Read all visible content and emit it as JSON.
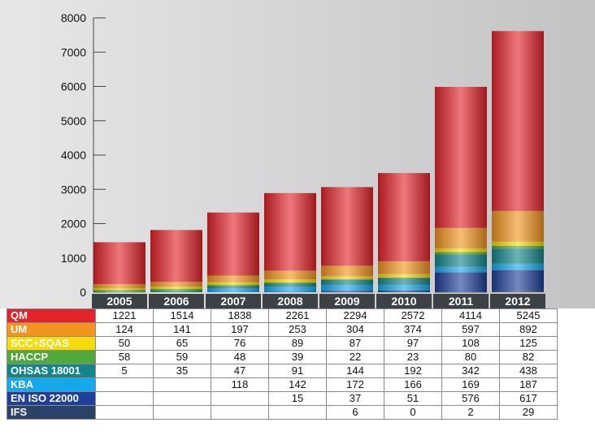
{
  "chart_data": {
    "type": "bar",
    "stacked": true,
    "categories": [
      "2005",
      "2006",
      "2007",
      "2008",
      "2009",
      "2010",
      "2011",
      "2012"
    ],
    "ylim": [
      0,
      8000
    ],
    "yticks": [
      "0",
      "1000",
      "2000",
      "3000",
      "4000",
      "5000",
      "6000",
      "7000",
      "8000"
    ],
    "ytick_values": [
      0,
      1000,
      2000,
      3000,
      4000,
      5000,
      6000,
      7000,
      8000
    ],
    "grid": false,
    "legend": "table",
    "series": [
      {
        "name": "IFS",
        "color": "#2c4168",
        "values": [
          null,
          null,
          null,
          null,
          6,
          0,
          2,
          29
        ]
      },
      {
        "name": "EN ISO 22000",
        "color": "#1e3f9a",
        "values": [
          null,
          null,
          null,
          15,
          37,
          51,
          576,
          617
        ]
      },
      {
        "name": "KBA",
        "color": "#16a8ec",
        "values": [
          null,
          null,
          118,
          142,
          172,
          166,
          169,
          187
        ]
      },
      {
        "name": "OHSAS 18001",
        "color": "#12868c",
        "values": [
          5,
          35,
          47,
          91,
          144,
          192,
          342,
          438
        ]
      },
      {
        "name": "HACCP",
        "color": "#52a83a",
        "values": [
          58,
          59,
          48,
          39,
          22,
          23,
          80,
          82
        ]
      },
      {
        "name": "SCC+SQAS",
        "color": "#f5dc0a",
        "values": [
          50,
          65,
          76,
          89,
          87,
          97,
          108,
          125
        ]
      },
      {
        "name": "UM",
        "color": "#f39420",
        "values": [
          124,
          141,
          197,
          253,
          304,
          374,
          597,
          892
        ]
      },
      {
        "name": "QM",
        "color": "#e3232a",
        "values": [
          1221,
          1514,
          1838,
          2261,
          2294,
          2572,
          4114,
          5245
        ]
      }
    ],
    "table": {
      "rows": [
        {
          "label": "QM",
          "color": "#e3232a",
          "cells": [
            "1221",
            "1514",
            "1838",
            "2261",
            "2294",
            "2572",
            "4114",
            "5245"
          ]
        },
        {
          "label": "UM",
          "color": "#f39420",
          "cells": [
            "124",
            "141",
            "197",
            "253",
            "304",
            "374",
            "597",
            "892"
          ]
        },
        {
          "label": "SCC+SQAS",
          "color": "#f5dc0a",
          "cells": [
            "50",
            "65",
            "76",
            "89",
            "87",
            "97",
            "108",
            "125"
          ]
        },
        {
          "label": "HACCP",
          "color": "#52a83a",
          "cells": [
            "58",
            "59",
            "48",
            "39",
            "22",
            "23",
            "80",
            "82"
          ]
        },
        {
          "label": "OHSAS 18001",
          "color": "#12868c",
          "cells": [
            "5",
            "35",
            "47",
            "91",
            "144",
            "192",
            "342",
            "438"
          ]
        },
        {
          "label": "KBA",
          "color": "#16a8ec",
          "cells": [
            "",
            "",
            "118",
            "142",
            "172",
            "166",
            "169",
            "187"
          ]
        },
        {
          "label": "EN ISO 22000",
          "color": "#1e3f9a",
          "cells": [
            "",
            "",
            "",
            "15",
            "37",
            "51",
            "576",
            "617"
          ]
        },
        {
          "label": "IFS",
          "color": "#2c4168",
          "cells": [
            "",
            "",
            "",
            "",
            "6",
            "0",
            "2",
            "29"
          ]
        }
      ]
    }
  }
}
